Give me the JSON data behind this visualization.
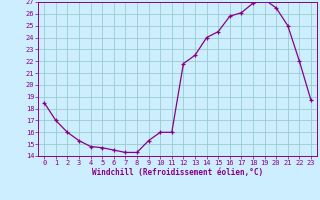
{
  "hours": [
    0,
    1,
    2,
    3,
    4,
    5,
    6,
    7,
    8,
    9,
    10,
    11,
    12,
    13,
    14,
    15,
    16,
    17,
    18,
    19,
    20,
    21,
    22,
    23
  ],
  "temps": [
    18.5,
    17.0,
    16.0,
    15.3,
    14.8,
    14.7,
    14.5,
    14.3,
    14.3,
    15.3,
    16.0,
    16.0,
    21.8,
    22.5,
    24.0,
    24.5,
    25.8,
    26.1,
    26.9,
    27.2,
    26.5,
    25.0,
    22.0,
    18.7
  ],
  "xlim": [
    -0.5,
    23.5
  ],
  "ylim": [
    14,
    27
  ],
  "xticks": [
    0,
    1,
    2,
    3,
    4,
    5,
    6,
    7,
    8,
    9,
    10,
    11,
    12,
    13,
    14,
    15,
    16,
    17,
    18,
    19,
    20,
    21,
    22,
    23
  ],
  "yticks": [
    14,
    15,
    16,
    17,
    18,
    19,
    20,
    21,
    22,
    23,
    24,
    25,
    26,
    27
  ],
  "xlabel": "Windchill (Refroidissement éolien,°C)",
  "line_color": "#880088",
  "marker": "+",
  "bg_color": "#cceeff",
  "grid_color": "#99cccc",
  "axis_color": "#880088",
  "tick_color": "#880088",
  "label_fontsize": 5.5,
  "tick_fontsize": 5.0,
  "linewidth": 0.9,
  "markersize": 3.5,
  "markeredgewidth": 0.9
}
